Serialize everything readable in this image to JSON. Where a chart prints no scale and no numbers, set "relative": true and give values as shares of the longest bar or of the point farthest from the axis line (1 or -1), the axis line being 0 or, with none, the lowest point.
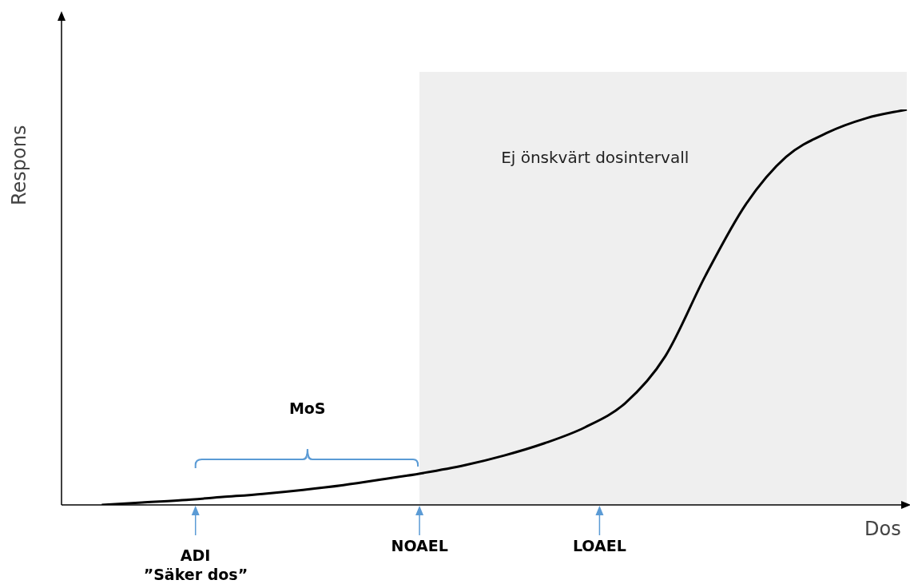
{
  "chart_data": {
    "type": "line",
    "relative": true,
    "xlabel": "Dos",
    "ylabel": "Respons",
    "color": "#000000",
    "marker": "none",
    "grid": false,
    "legend": false,
    "tick_labels": false,
    "categories": [
      null,
      null,
      null,
      null,
      null,
      null,
      null,
      null,
      null,
      null,
      null,
      null,
      null,
      null,
      null,
      null,
      null,
      null,
      null,
      null,
      null,
      null
    ],
    "values": [
      null,
      0,
      0.006,
      0.012,
      0.02,
      0.028,
      0.038,
      0.05,
      0.065,
      0.081,
      0.1,
      0.125,
      0.156,
      0.196,
      0.257,
      0.376,
      0.58,
      0.76,
      0.88,
      0.94,
      0.978,
      1
    ],
    "annotations": [
      "Ej önskvärt dosintervall",
      "MoS",
      "ADI",
      "”Säker dos”",
      "NOAEL",
      "LOAEL"
    ]
  }
}
